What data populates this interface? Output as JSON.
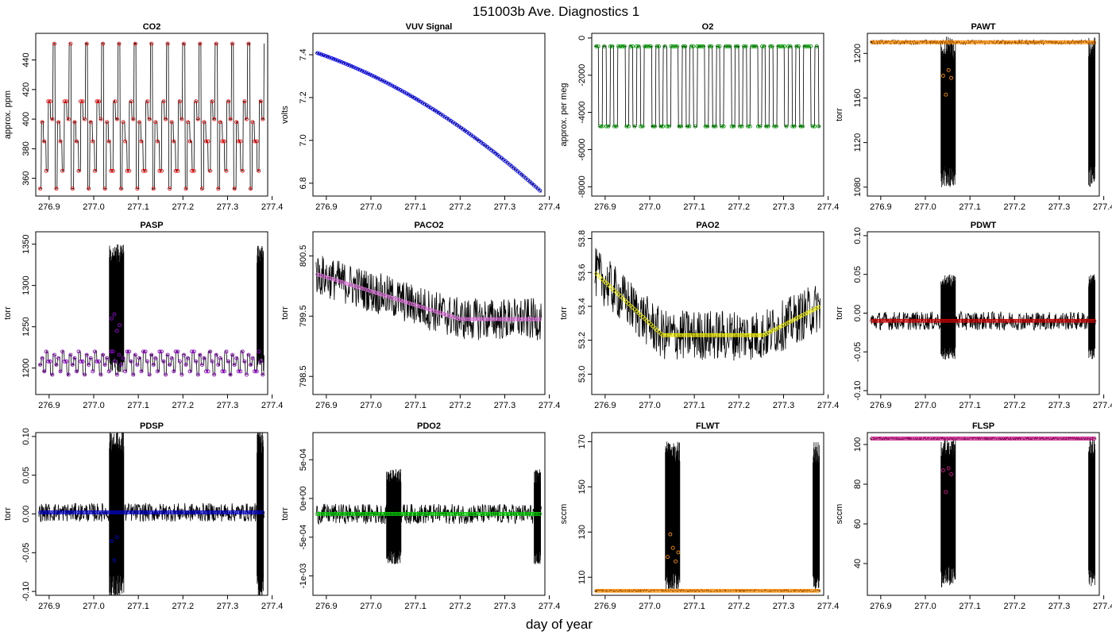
{
  "figure": {
    "title": "151003b   Ave. Diagnostics 1",
    "xlabel": "day of year"
  },
  "chart_data": [
    {
      "type": "line",
      "title": "CO2",
      "ylabel": "approx. ppm",
      "xlim": [
        276.87,
        277.39
      ],
      "ylim": [
        348,
        458
      ],
      "xticks": [
        276.9,
        277.0,
        277.1,
        277.2,
        277.3,
        277.4
      ],
      "xtick_labels": [
        "276.9",
        "277.0",
        "277.1",
        "277.2",
        "277.3",
        "277.4"
      ],
      "yticks": [
        360,
        380,
        400,
        420,
        440
      ],
      "ytick_labels": [
        "360",
        "380",
        "400",
        "420",
        "440"
      ],
      "raw_color": "#000000",
      "avg_color": "#ff0000",
      "pattern": "step",
      "levels": [
        353,
        398,
        385,
        365,
        412,
        400,
        451
      ],
      "segment_width": 0.0052
    },
    {
      "type": "line",
      "title": "VUV Signal",
      "ylabel": "volts",
      "xlim": [
        276.87,
        277.39
      ],
      "ylim": [
        6.74,
        7.5
      ],
      "xticks": [
        276.9,
        277.0,
        277.1,
        277.2,
        277.3,
        277.4
      ],
      "xtick_labels": [
        "276.9",
        "277.0",
        "277.1",
        "277.2",
        "277.3",
        "277.4"
      ],
      "yticks": [
        6.8,
        7.0,
        7.2,
        7.4
      ],
      "ytick_labels": [
        "6.8",
        "7.0",
        "7.2",
        "7.4"
      ],
      "raw_color": "#000000",
      "avg_color": "#0000ff",
      "pattern": "decay",
      "start": 7.41,
      "end": 6.76
    },
    {
      "type": "line",
      "title": "O2",
      "ylabel": "approx. per meg",
      "xlim": [
        276.87,
        277.39
      ],
      "ylim": [
        -8500,
        250
      ],
      "xticks": [
        276.9,
        277.0,
        277.1,
        277.2,
        277.3,
        277.4
      ],
      "xtick_labels": [
        "276.9",
        "277.0",
        "277.1",
        "277.2",
        "277.3",
        "277.4"
      ],
      "yticks": [
        -8000,
        -6000,
        -4000,
        -2000,
        0
      ],
      "ytick_labels": [
        "-8000",
        "-6000",
        "-4000",
        "-2000",
        "0"
      ],
      "raw_color": "#000000",
      "avg_color": "#00a000",
      "pattern": "step",
      "levels": [
        -450,
        -4750,
        -450,
        -4750,
        -450,
        -4750,
        -450
      ],
      "segment_width": 0.0085
    },
    {
      "type": "line",
      "title": "PAWT",
      "ylabel": "torr",
      "xlim": [
        276.87,
        277.39
      ],
      "ylim": [
        1072,
        1218
      ],
      "xticks": [
        276.9,
        277.0,
        277.1,
        277.2,
        277.3,
        277.4
      ],
      "xtick_labels": [
        "276.9",
        "277.0",
        "277.1",
        "277.2",
        "277.3",
        "277.4"
      ],
      "yticks": [
        1080,
        1120,
        1160,
        1200
      ],
      "ytick_labels": [
        "1080",
        "1120",
        "1160",
        "1200"
      ],
      "raw_color": "#000000",
      "avg_color": "#ff8c00",
      "pattern": "flat",
      "base": 1210,
      "noise": 2,
      "spike_lo": 1080,
      "spike_hi": 1215,
      "outliers": [
        1180,
        1163,
        1185,
        1178
      ]
    },
    {
      "type": "line",
      "title": "PASP",
      "ylabel": "torr",
      "xlim": [
        276.87,
        277.39
      ],
      "ylim": [
        1168,
        1365
      ],
      "xticks": [
        276.9,
        277.0,
        277.1,
        277.2,
        277.3,
        277.4
      ],
      "xtick_labels": [
        "276.9",
        "277.0",
        "277.1",
        "277.2",
        "277.3",
        "277.4"
      ],
      "yticks": [
        1200,
        1250,
        1300,
        1350
      ],
      "ytick_labels": [
        "1200",
        "1250",
        "1300",
        "1350"
      ],
      "raw_color": "#000000",
      "avg_color": "#9400d3",
      "pattern": "step",
      "levels": [
        1204,
        1212,
        1196,
        1220,
        1208,
        1192,
        1216
      ],
      "segment_width": 0.0052,
      "spike_lo": 1195,
      "spike_hi": 1350,
      "outliers": [
        1260,
        1265,
        1245,
        1252
      ]
    },
    {
      "type": "line",
      "title": "PACO2",
      "ylabel": "torr",
      "xlim": [
        276.87,
        277.39
      ],
      "ylim": [
        798.2,
        800.9
      ],
      "xticks": [
        276.9,
        277.0,
        277.1,
        277.2,
        277.3,
        277.4
      ],
      "xtick_labels": [
        "276.9",
        "277.0",
        "277.1",
        "277.2",
        "277.3",
        "277.4"
      ],
      "yticks": [
        798.5,
        799.5,
        800.5
      ],
      "ytick_labels": [
        "798.5",
        "799.5",
        "800.5"
      ],
      "raw_color": "#000000",
      "avg_color": "#da70d6",
      "pattern": "drift",
      "start": 800.2,
      "end": 799.45,
      "drift_end": 277.2,
      "noise": 0.35
    },
    {
      "type": "line",
      "title": "PAO2",
      "ylabel": "torr",
      "xlim": [
        276.87,
        277.39
      ],
      "ylim": [
        52.88,
        53.84
      ],
      "xticks": [
        276.9,
        277.0,
        277.1,
        277.2,
        277.3,
        277.4
      ],
      "xtick_labels": [
        "276.9",
        "277.0",
        "277.1",
        "277.2",
        "277.3",
        "277.4"
      ],
      "yticks": [
        53.0,
        53.2,
        53.4,
        53.6,
        53.8
      ],
      "ytick_labels": [
        "53.0",
        "53.2",
        "53.4",
        "53.6",
        "53.8"
      ],
      "raw_color": "#000000",
      "avg_color": "#e8e800",
      "pattern": "valley",
      "start": 53.6,
      "low": 53.23,
      "end": 53.4,
      "noise": 0.15
    },
    {
      "type": "line",
      "title": "PDWT",
      "ylabel": "torr",
      "xlim": [
        276.87,
        277.39
      ],
      "ylim": [
        -0.105,
        0.105
      ],
      "xticks": [
        276.9,
        277.0,
        277.1,
        277.2,
        277.3,
        277.4
      ],
      "xtick_labels": [
        "276.9",
        "277.0",
        "277.1",
        "277.2",
        "277.3",
        "277.4"
      ],
      "yticks": [
        -0.1,
        -0.05,
        0.0,
        0.05,
        0.1
      ],
      "ytick_labels": [
        "-0.10",
        "-0.05",
        "0.00",
        "0.05",
        "0.10"
      ],
      "raw_color": "#000000",
      "avg_color": "#cc0000",
      "pattern": "flat",
      "base": -0.01,
      "noise": 0.012,
      "spike_lo": -0.06,
      "spike_hi": 0.05
    },
    {
      "type": "line",
      "title": "PDSP",
      "ylabel": "torr",
      "xlim": [
        276.87,
        277.39
      ],
      "ylim": [
        -0.105,
        0.105
      ],
      "xticks": [
        276.9,
        277.0,
        277.1,
        277.2,
        277.3,
        277.4
      ],
      "xtick_labels": [
        "276.9",
        "277.0",
        "277.1",
        "277.2",
        "277.3",
        "277.4"
      ],
      "yticks": [
        -0.1,
        -0.05,
        0.0,
        0.05,
        0.1
      ],
      "ytick_labels": [
        "-0.10",
        "-0.05",
        "0.00",
        "0.05",
        "0.10"
      ],
      "raw_color": "#000000",
      "avg_color": "#0000cd",
      "pattern": "flat",
      "base": 0.002,
      "noise": 0.012,
      "spike_lo": -0.11,
      "spike_hi": 0.11,
      "outliers": [
        -0.035,
        -0.06,
        -0.03
      ]
    },
    {
      "type": "line",
      "title": "PDO2",
      "ylabel": "torr",
      "xlim": [
        276.87,
        277.39
      ],
      "ylim": [
        -0.00125,
        0.00085
      ],
      "xticks": [
        276.9,
        277.0,
        277.1,
        277.2,
        277.3,
        277.4
      ],
      "xtick_labels": [
        "276.9",
        "277.0",
        "277.1",
        "277.2",
        "277.3",
        "277.4"
      ],
      "yticks": [
        -0.001,
        -0.0005,
        0.0,
        0.0005
      ],
      "ytick_labels": [
        "-1e-03",
        "-5e-04",
        "0e+00",
        "5e-04"
      ],
      "raw_color": "#000000",
      "avg_color": "#00cc00",
      "pattern": "flat",
      "base": -0.0002,
      "noise": 0.00013,
      "spike_lo": -0.00085,
      "spike_hi": 0.00038
    },
    {
      "type": "line",
      "title": "FLWT",
      "ylabel": "sccm",
      "xlim": [
        276.87,
        277.39
      ],
      "ylim": [
        102,
        174
      ],
      "xticks": [
        276.9,
        277.0,
        277.1,
        277.2,
        277.3,
        277.4
      ],
      "xtick_labels": [
        "276.9",
        "277.0",
        "277.1",
        "277.2",
        "277.3",
        "277.4"
      ],
      "yticks": [
        110,
        130,
        150,
        170
      ],
      "ytick_labels": [
        "110",
        "130",
        "150",
        "170"
      ],
      "raw_color": "#000000",
      "avg_color": "#ff8c00",
      "pattern": "flat",
      "base": 104,
      "noise": 0.5,
      "spike_lo": 104,
      "spike_hi": 170,
      "outliers": [
        119,
        129,
        123,
        117,
        121
      ]
    },
    {
      "type": "line",
      "title": "FLSP",
      "ylabel": "sccm",
      "xlim": [
        276.87,
        277.39
      ],
      "ylim": [
        24,
        106
      ],
      "xticks": [
        276.9,
        277.0,
        277.1,
        277.2,
        277.3,
        277.4
      ],
      "xtick_labels": [
        "276.9",
        "277.0",
        "277.1",
        "277.2",
        "277.3",
        "277.4"
      ],
      "yticks": [
        40,
        60,
        80,
        100
      ],
      "ytick_labels": [
        "40",
        "60",
        "80",
        "100"
      ],
      "raw_color": "#000000",
      "avg_color": "#c71585",
      "pattern": "flat",
      "base": 103,
      "noise": 0.6,
      "spike_lo": 28,
      "spike_hi": 104,
      "outliers": [
        87,
        76,
        88,
        85
      ]
    }
  ]
}
